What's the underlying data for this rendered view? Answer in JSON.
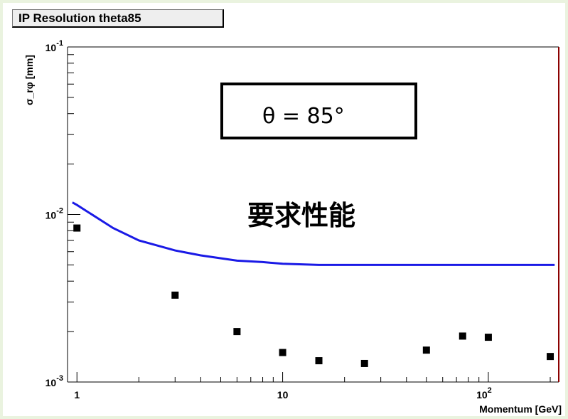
{
  "title": "IP Resolution theta85",
  "annotation_box": "θ = 85°",
  "annotation_text": "要求性能",
  "colors": {
    "curve": "#1a1ae6",
    "points": "#000000",
    "frame_right": "#8b0000",
    "page_border": "#eaf3df"
  },
  "chart_data": {
    "type": "scatter",
    "title": "IP Resolution theta85",
    "xlabel": "Momentum [GeV]",
    "ylabel": "σ_rφ [mm]",
    "xscale": "log",
    "yscale": "log",
    "xlim": [
      0.9,
      220
    ],
    "ylim": [
      0.001,
      0.1
    ],
    "x_tick_labels": [
      "1",
      "10",
      "10²"
    ],
    "y_tick_labels": [
      "10⁻³",
      "10⁻²",
      "10⁻¹"
    ],
    "series": [
      {
        "type": "scatter",
        "x": [
          1,
          3,
          6,
          10,
          15,
          25,
          50,
          75,
          100,
          200
        ],
        "y": [
          0.0083,
          0.0033,
          0.002,
          0.0015,
          0.00134,
          0.00129,
          0.00155,
          0.00188,
          0.00185,
          0.00142
        ]
      },
      {
        "type": "line",
        "x": [
          0.95,
          1,
          1.5,
          2,
          3,
          4,
          6,
          8,
          10,
          15,
          20,
          50,
          100,
          210
        ],
        "y": [
          0.0118,
          0.0114,
          0.0083,
          0.007,
          0.0061,
          0.0057,
          0.0053,
          0.0052,
          0.00508,
          0.005,
          0.005,
          0.005,
          0.005,
          0.005
        ]
      }
    ],
    "grid": false
  }
}
